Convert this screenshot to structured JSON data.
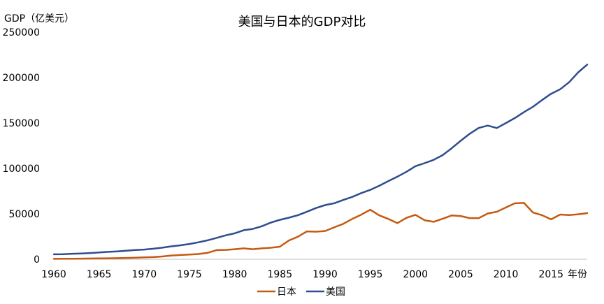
{
  "chart_data": {
    "type": "line",
    "title": "美国与日本的GDP对比",
    "ylabel": "GDP（亿美元）",
    "xlabel": "年份",
    "ylim": [
      0,
      250000
    ],
    "yticks": [
      0,
      50000,
      100000,
      150000,
      200000,
      250000
    ],
    "xlim": [
      1960,
      2019
    ],
    "xticks": [
      1960,
      1965,
      1970,
      1975,
      1980,
      1985,
      1990,
      1995,
      2000,
      2005,
      2010,
      2015
    ],
    "grid": false,
    "legend_position": "bottom",
    "x": [
      1960,
      1961,
      1962,
      1963,
      1964,
      1965,
      1966,
      1967,
      1968,
      1969,
      1970,
      1971,
      1972,
      1973,
      1974,
      1975,
      1976,
      1977,
      1978,
      1979,
      1980,
      1981,
      1982,
      1983,
      1984,
      1985,
      1986,
      1987,
      1988,
      1989,
      1990,
      1991,
      1992,
      1993,
      1994,
      1995,
      1996,
      1997,
      1998,
      1999,
      2000,
      2001,
      2002,
      2003,
      2004,
      2005,
      2006,
      2007,
      2008,
      2009,
      2010,
      2011,
      2012,
      2013,
      2014,
      2015,
      2016,
      2017,
      2018,
      2019
    ],
    "series": [
      {
        "name": "日本",
        "color": "#c55a11",
        "values": [
          443,
          535,
          608,
          700,
          814,
          910,
          1056,
          1237,
          1463,
          1700,
          2095,
          2365,
          3080,
          4170,
          4710,
          5210,
          5740,
          7090,
          10060,
          10300,
          11050,
          11970,
          11040,
          12010,
          12690,
          13850,
          20710,
          24880,
          30710,
          30400,
          31040,
          35100,
          38900,
          44400,
          49100,
          54500,
          48300,
          44400,
          39800,
          45600,
          48900,
          43000,
          41200,
          44500,
          48200,
          47600,
          45300,
          45300,
          50400,
          52300,
          57000,
          61600,
          62000,
          51500,
          48500,
          43900,
          49200,
          48700,
          49500,
          50800
        ]
      },
      {
        "name": "美国",
        "color": "#2f4d8e",
        "values": [
          5430,
          5630,
          6050,
          6390,
          6860,
          7440,
          8150,
          8620,
          9420,
          10190,
          10730,
          11640,
          12790,
          14260,
          15390,
          16850,
          18730,
          20810,
          23520,
          26320,
          28570,
          31970,
          33420,
          36340,
          40370,
          43390,
          45800,
          48550,
          52360,
          56420,
          59630,
          61580,
          65200,
          68580,
          72870,
          76400,
          81000,
          86080,
          90890,
          96310,
          102500,
          105800,
          109360,
          114580,
          122170,
          130370,
          138150,
          144520,
          147130,
          144490,
          149920,
          155430,
          161970,
          167850,
          175210,
          182190,
          187070,
          194850,
          205800,
          214330
        ]
      }
    ]
  }
}
